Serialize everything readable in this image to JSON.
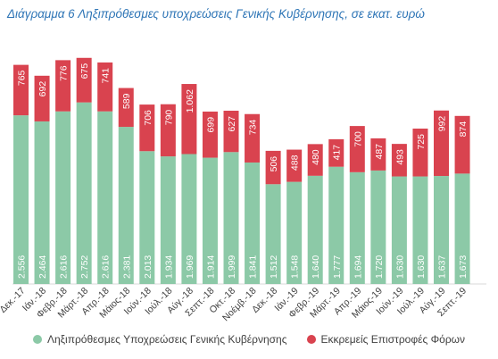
{
  "title": "Διάγραμμα 6 Ληξιπρόθεσμες υποχρεώσεις Γενικής Κυβέρνησης, σε εκατ. ευρώ",
  "colors": {
    "green": "#8cc9a7",
    "red": "#d9434f",
    "label": "#ffffff",
    "axis": "#404040"
  },
  "legend": {
    "series1": "Ληξιπρόθεσμες Υποχρεώσεις Γενικής Κυβέρνησης",
    "series2": "Εκκρεμείς Επιστροφές Φόρων"
  },
  "chart_data": {
    "type": "bar",
    "stacked": true,
    "title": "Διάγραμμα 6 Ληξιπρόθεσμες υποχρεώσεις Γενικής Κυβέρνησης, σε εκατ. ευρώ",
    "categories": [
      "Δεκ.-17",
      "Ιάν.-18",
      "Φεβρ.-18",
      "Μάρτ.-18",
      "Απρ.-18",
      "Μάιος-18",
      "Ιούν.-18",
      "Ιούλ.-18",
      "Αύγ.-18",
      "Σεπτ.-18",
      "Οκτ.-18",
      "Νοέμβ.-18",
      "Δεκ.-18",
      "Ιάν.-19",
      "Φεβρ.-19",
      "Μάρτ.-19",
      "Απρ.-19",
      "Μάιος-19",
      "Ιούν.-19",
      "Ιούλ.-19",
      "Αύγ.-19",
      "Σεπτ.-19"
    ],
    "series": [
      {
        "name": "Ληξιπρόθεσμες Υποχρεώσεις Γενικής Κυβέρνησης",
        "values": [
          2556,
          2464,
          2616,
          2752,
          2616,
          2381,
          2013,
          1934,
          1969,
          1914,
          1999,
          1841,
          1512,
          1548,
          1640,
          1777,
          1694,
          1720,
          1630,
          1630,
          1637,
          1673
        ],
        "labels": [
          "2.556",
          "2.464",
          "2.616",
          "2.752",
          "2.616",
          "2.381",
          "2.013",
          "1.934",
          "1.969",
          "1.914",
          "1.999",
          "1.841",
          "1.512",
          "1.548",
          "1.640",
          "1.777",
          "1.694",
          "1.720",
          "1.630",
          "1.630",
          "1.637",
          "1.673"
        ]
      },
      {
        "name": "Εκκρεμείς Επιστροφές Φόρων",
        "values": [
          765,
          692,
          776,
          675,
          741,
          589,
          706,
          790,
          1062,
          699,
          627,
          734,
          506,
          488,
          480,
          417,
          700,
          487,
          493,
          725,
          992,
          874
        ],
        "labels": [
          "765",
          "692",
          "776",
          "675",
          "741",
          "589",
          "706",
          "790",
          "1.062",
          "699",
          "627",
          "734",
          "506",
          "488",
          "480",
          "417",
          "700",
          "487",
          "493",
          "725",
          "992",
          "874"
        ]
      }
    ],
    "ylim": [
      0,
      3600
    ],
    "legend_position": "bottom",
    "grid": false
  }
}
